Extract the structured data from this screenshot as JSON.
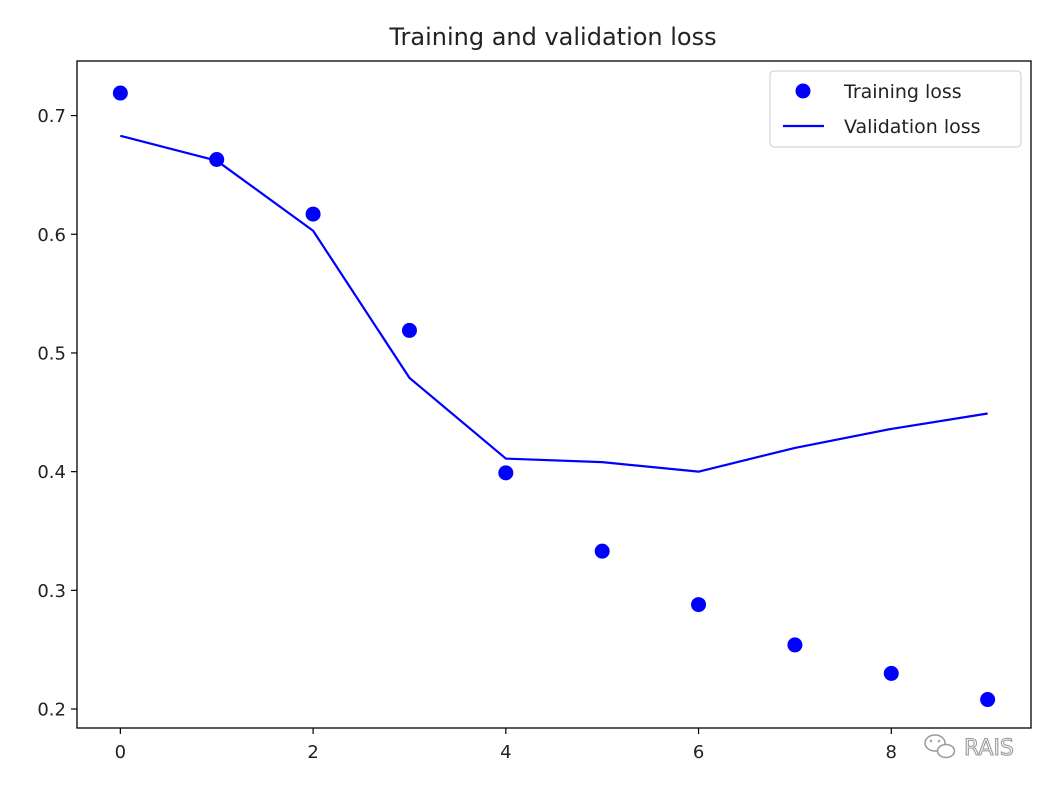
{
  "chart_data": {
    "type": "line",
    "title": "Training and validation loss",
    "xlabel": "",
    "ylabel": "",
    "xlim": [
      -0.45,
      9.45
    ],
    "ylim": [
      0.184,
      0.746
    ],
    "xticks": [
      0,
      2,
      4,
      6,
      8
    ],
    "yticks": [
      0.2,
      0.3,
      0.4,
      0.5,
      0.6,
      0.7
    ],
    "grid": false,
    "legend_position": "top-right",
    "series": [
      {
        "name": "Training loss",
        "style": "markers",
        "color": "#0000ff",
        "x": [
          0,
          1,
          2,
          3,
          4,
          5,
          6,
          7,
          8,
          9
        ],
        "y": [
          0.719,
          0.663,
          0.617,
          0.519,
          0.399,
          0.333,
          0.288,
          0.254,
          0.23,
          0.208
        ]
      },
      {
        "name": "Validation loss",
        "style": "line",
        "color": "#0000ff",
        "x": [
          0,
          1,
          2,
          3,
          4,
          5,
          6,
          7,
          8,
          9
        ],
        "y": [
          0.683,
          0.662,
          0.603,
          0.479,
          0.411,
          0.408,
          0.4,
          0.42,
          0.436,
          0.449
        ]
      }
    ]
  },
  "watermark": {
    "text": "RAIS",
    "icon": "wechat-icon"
  }
}
